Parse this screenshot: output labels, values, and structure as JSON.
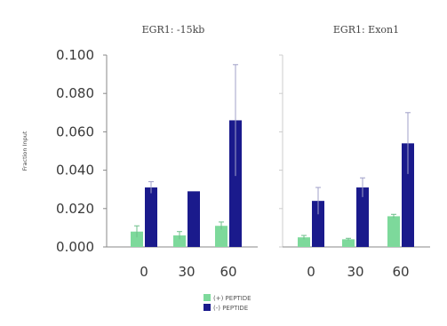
{
  "chart_data": {
    "type": "bar",
    "ylabel": "Fraction Input",
    "ylim": [
      0,
      0.1
    ],
    "yticks": [
      "0.000",
      "0.020",
      "0.040",
      "0.060",
      "0.080",
      "0.100"
    ],
    "grid": false,
    "legend_position": "bottom-center",
    "panels": [
      {
        "title": "EGR1: -15kb",
        "categories": [
          "0",
          "30",
          "60"
        ],
        "series": [
          {
            "name": "(+) PEPTIDE",
            "color": "#7dd99b",
            "values": [
              0.008,
              0.006,
              0.011
            ],
            "errors": [
              0.003,
              0.002,
              0.002
            ]
          },
          {
            "name": "(-) PEPTIDE",
            "color": "#1a1a8c",
            "values": [
              0.031,
              0.029,
              0.066
            ],
            "errors": [
              0.003,
              0.0,
              0.029
            ]
          }
        ]
      },
      {
        "title": "EGR1: Exon1",
        "categories": [
          "0",
          "30",
          "60"
        ],
        "series": [
          {
            "name": "(+) PEPTIDE",
            "color": "#7dd99b",
            "values": [
              0.005,
              0.004,
              0.016
            ],
            "errors": [
              0.001,
              0.0005,
              0.001
            ]
          },
          {
            "name": "(-) PEPTIDE",
            "color": "#1a1a8c",
            "values": [
              0.024,
              0.031,
              0.054
            ],
            "errors": [
              0.007,
              0.005,
              0.016
            ]
          }
        ]
      }
    ]
  }
}
